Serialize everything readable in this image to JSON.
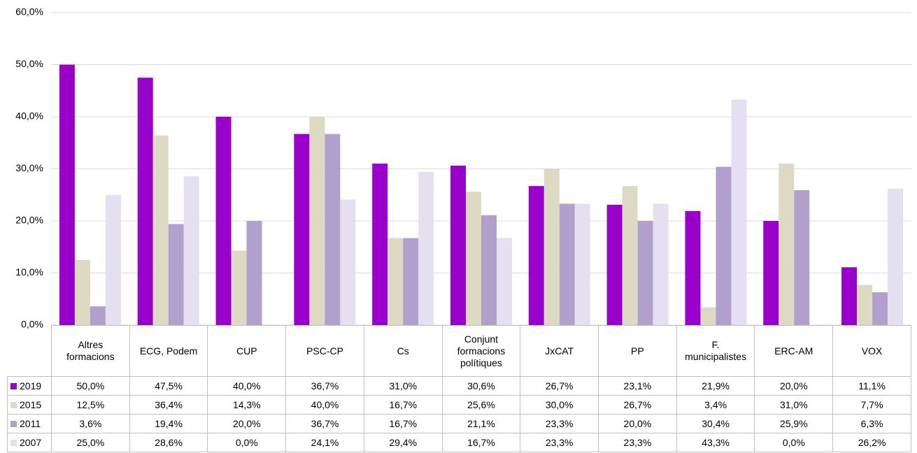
{
  "chart_data": {
    "type": "bar",
    "categories": [
      "Altres formacions",
      "ECG, Podem",
      "CUP",
      "PSC-CP",
      "Cs",
      "Conjunt formacions polítiques",
      "JxCAT",
      "PP",
      "F. municipalistes",
      "ERC-AM",
      "VOX"
    ],
    "series": [
      {
        "name": "2019",
        "color": "#9900cc",
        "values": [
          50.0,
          47.5,
          40.0,
          36.7,
          31.0,
          30.6,
          26.7,
          23.1,
          21.9,
          20.0,
          11.1
        ],
        "value_labels": [
          "50,0%",
          "47,5%",
          "40,0%",
          "36,7%",
          "31,0%",
          "30,6%",
          "26,7%",
          "23,1%",
          "21,9%",
          "20,0%",
          "11,1%"
        ]
      },
      {
        "name": "2015",
        "color": "#ddd9c3",
        "values": [
          12.5,
          36.4,
          14.3,
          40.0,
          16.7,
          25.6,
          30.0,
          26.7,
          3.4,
          31.0,
          7.7
        ],
        "value_labels": [
          "12,5%",
          "36,4%",
          "14,3%",
          "40,0%",
          "16,7%",
          "25,6%",
          "30,0%",
          "26,7%",
          "3,4%",
          "31,0%",
          "7,7%"
        ]
      },
      {
        "name": "2011",
        "color": "#b1a0cb",
        "values": [
          3.6,
          19.4,
          20.0,
          36.7,
          16.7,
          21.1,
          23.3,
          20.0,
          30.4,
          25.9,
          6.3
        ],
        "value_labels": [
          "3,6%",
          "19,4%",
          "20,0%",
          "36,7%",
          "16,7%",
          "21,1%",
          "23,3%",
          "20,0%",
          "30,4%",
          "25,9%",
          "6,3%"
        ]
      },
      {
        "name": "2007",
        "color": "#e5e0ef",
        "values": [
          25.0,
          28.6,
          0.0,
          24.1,
          29.4,
          16.7,
          23.3,
          23.3,
          43.3,
          0.0,
          26.2
        ],
        "value_labels": [
          "25,0%",
          "28,6%",
          "0,0%",
          "24,1%",
          "29,4%",
          "16,7%",
          "23,3%",
          "23,3%",
          "43,3%",
          "0,0%",
          "26,2%"
        ]
      }
    ],
    "ylim": [
      0,
      60
    ],
    "yticks": [
      {
        "value": 0,
        "label": "0,0%"
      },
      {
        "value": 10,
        "label": "10,0%"
      },
      {
        "value": 20,
        "label": "20,0%"
      },
      {
        "value": 30,
        "label": "30,0%"
      },
      {
        "value": 40,
        "label": "40,0%"
      },
      {
        "value": 50,
        "label": "50,0%"
      },
      {
        "value": 60,
        "label": "60,0%"
      }
    ],
    "grid": true
  }
}
